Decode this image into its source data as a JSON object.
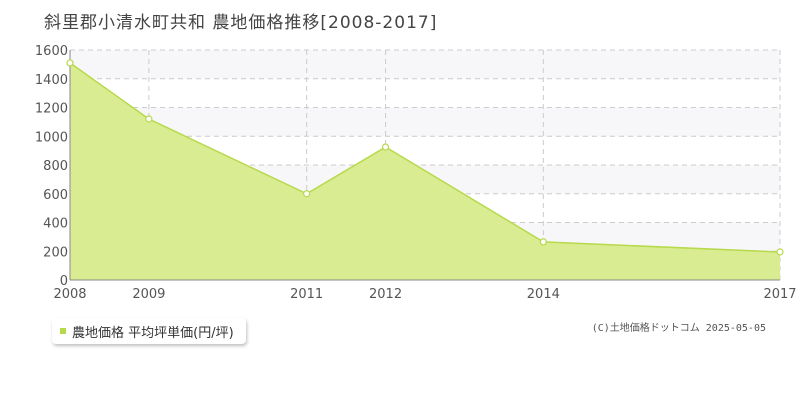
{
  "title": "斜里郡小清水町共和 農地価格推移[2008-2017]",
  "legend": {
    "label": "農地価格 平均坪単価(円/坪)",
    "color": "#b7d94c"
  },
  "copyright": "(C)土地価格ドットコム 2025-05-05",
  "chart_data": {
    "type": "area",
    "x": [
      2008,
      2009,
      2011,
      2012,
      2014,
      2017
    ],
    "xtick_labels": [
      "2008",
      "2009",
      "2011",
      "2012",
      "2014",
      "2017"
    ],
    "series": [
      {
        "name": "農地価格 平均坪単価(円/坪)",
        "values": [
          1510,
          1120,
          600,
          925,
          265,
          195
        ]
      }
    ],
    "ylim": [
      0,
      1600
    ],
    "yticks": [
      0,
      200,
      400,
      600,
      800,
      1000,
      1200,
      1400,
      1600
    ],
    "ytick_labels": [
      "0",
      "200",
      "400",
      "600",
      "800",
      "1000",
      "1200",
      "1400",
      "1600"
    ],
    "grid": true,
    "fill_color": "#d9ec91",
    "line_color": "#b7d94c",
    "band_color": "#f7f6f8",
    "legend_position": "bottom-left"
  }
}
